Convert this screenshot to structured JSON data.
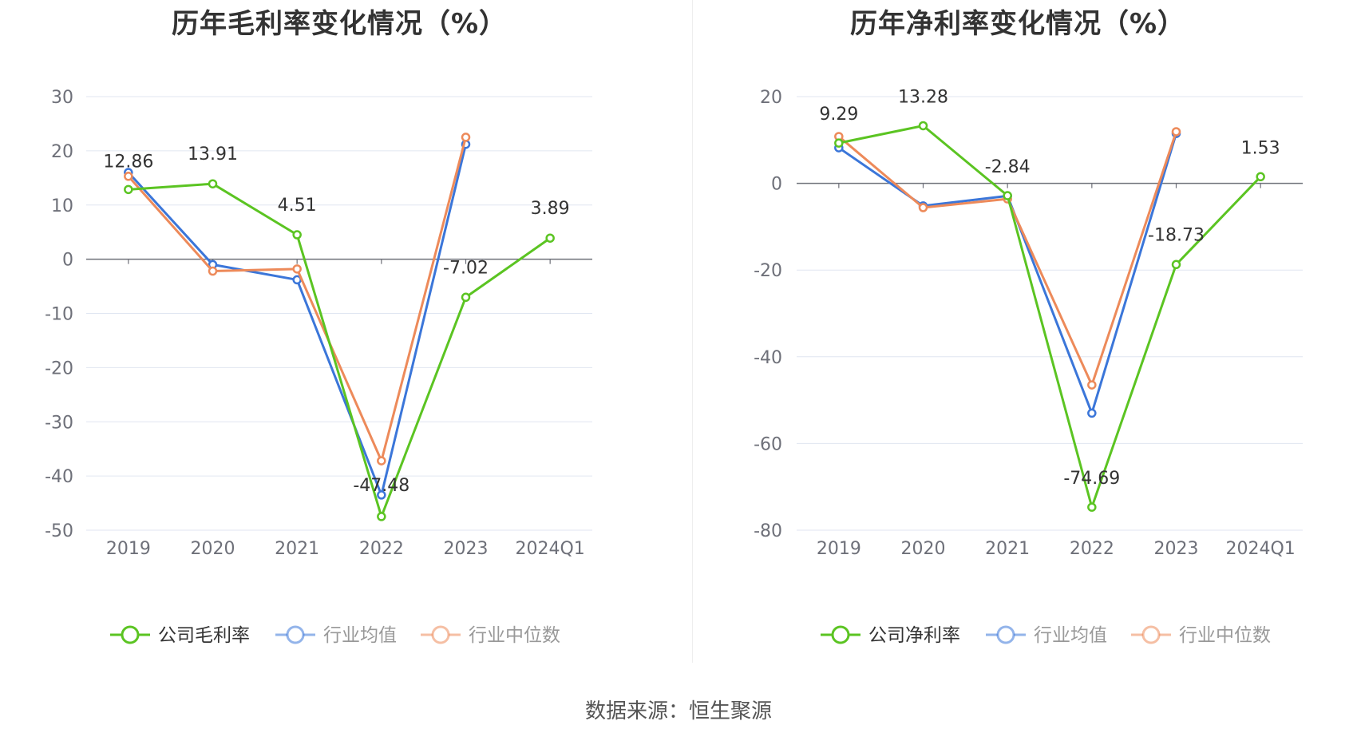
{
  "chart_data": [
    {
      "type": "line",
      "title": "历年毛利率变化情况（%）",
      "categories": [
        "2019",
        "2020",
        "2021",
        "2022",
        "2023",
        "2024Q1"
      ],
      "ylim": [
        -50,
        30
      ],
      "yticks": [
        30,
        20,
        10,
        0,
        -10,
        -20,
        -30,
        -40,
        -50
      ],
      "grid": true,
      "legend_position": "bottom",
      "series": [
        {
          "name": "公司毛利率",
          "color": "#5bc422",
          "values": [
            12.86,
            13.91,
            4.51,
            -47.48,
            -7.02,
            3.89
          ],
          "labels": [
            "12.86",
            "13.91",
            "4.51",
            "-47.48",
            "-7.02",
            "3.89"
          ]
        },
        {
          "name": "行业均值",
          "color": "#3b76d9",
          "values": [
            16.0,
            -1.0,
            -3.8,
            -43.5,
            21.2,
            null
          ]
        },
        {
          "name": "行业中位数",
          "color": "#ed8a5a",
          "values": [
            15.3,
            -2.2,
            -1.8,
            -37.2,
            22.5,
            null
          ]
        }
      ]
    },
    {
      "type": "line",
      "title": "历年净利率变化情况（%）",
      "categories": [
        "2019",
        "2020",
        "2021",
        "2022",
        "2023",
        "2024Q1"
      ],
      "ylim": [
        -80,
        20
      ],
      "yticks": [
        20,
        0,
        -20,
        -40,
        -60,
        -80
      ],
      "grid": true,
      "legend_position": "bottom",
      "series": [
        {
          "name": "公司净利率",
          "color": "#5bc422",
          "values": [
            9.29,
            13.28,
            -2.84,
            -74.69,
            -18.73,
            1.53
          ],
          "labels": [
            "9.29",
            "13.28",
            "-2.84",
            "-74.69",
            "-18.73",
            "1.53"
          ]
        },
        {
          "name": "行业均值",
          "color": "#3b76d9",
          "values": [
            8.2,
            -5.2,
            -2.9,
            -53.0,
            11.5,
            null
          ]
        },
        {
          "name": "行业中位数",
          "color": "#ed8a5a",
          "values": [
            10.8,
            -5.6,
            -3.6,
            -46.5,
            11.9,
            null
          ]
        }
      ]
    }
  ],
  "footer": {
    "source": "数据来源：恒生聚源"
  }
}
